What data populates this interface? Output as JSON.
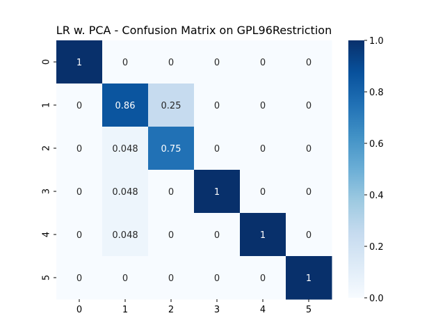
{
  "chart_data": {
    "type": "heatmap",
    "title": "LR w. PCA - Confusion Matrix on GPL96Restriction",
    "xlabel": "",
    "ylabel": "",
    "x_categories": [
      "0",
      "1",
      "2",
      "3",
      "4",
      "5"
    ],
    "y_categories": [
      "0",
      "1",
      "2",
      "3",
      "4",
      "5"
    ],
    "values": [
      [
        1,
        0,
        0,
        0,
        0,
        0
      ],
      [
        0,
        0.86,
        0.25,
        0,
        0,
        0
      ],
      [
        0,
        0.048,
        0.75,
        0,
        0,
        0
      ],
      [
        0,
        0.048,
        0,
        1,
        0,
        0
      ],
      [
        0,
        0.048,
        0,
        0,
        1,
        0
      ],
      [
        0,
        0,
        0,
        0,
        0,
        1
      ]
    ],
    "labels": [
      [
        "1",
        "0",
        "0",
        "0",
        "0",
        "0"
      ],
      [
        "0",
        "0.86",
        "0.25",
        "0",
        "0",
        "0"
      ],
      [
        "0",
        "0.048",
        "0.75",
        "0",
        "0",
        "0"
      ],
      [
        "0",
        "0.048",
        "0",
        "1",
        "0",
        "0"
      ],
      [
        "0",
        "0.048",
        "0",
        "0",
        "1",
        "0"
      ],
      [
        "0",
        "0",
        "0",
        "0",
        "0",
        "1"
      ]
    ],
    "colorbar": {
      "range": [
        0.0,
        1.0
      ],
      "ticks": [
        "0.0",
        "0.2",
        "0.4",
        "0.6",
        "0.8",
        "1.0"
      ],
      "colormap": "Blues"
    },
    "grid": false
  }
}
